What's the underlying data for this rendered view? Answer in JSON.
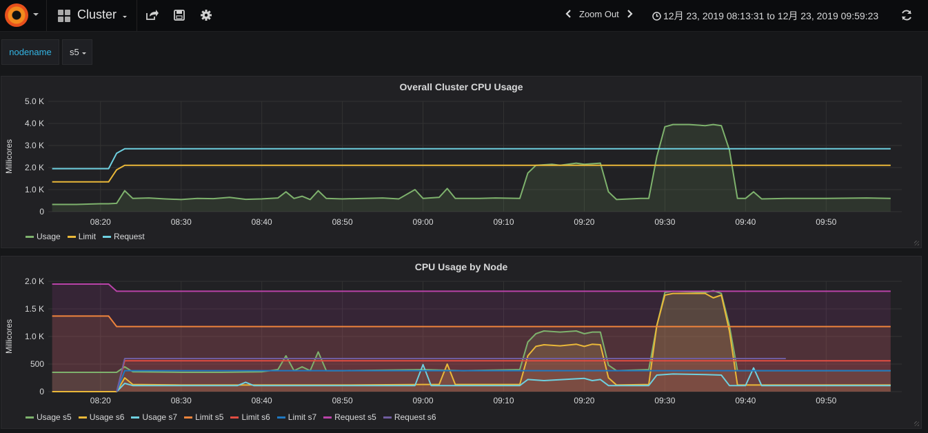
{
  "navbar": {
    "dashboard_title": "Cluster",
    "zoom_out_label": "Zoom Out",
    "time_range": "12月 23, 2019 08:13:31 to 12月 23, 2019 09:59:23",
    "icons": [
      "grafana-logo-icon",
      "dashboard-grid-icon",
      "share-icon",
      "save-icon",
      "settings-icon",
      "chevron-left-icon",
      "chevron-right-icon",
      "clock-icon",
      "refresh-icon"
    ]
  },
  "variables": {
    "label": "nodename",
    "value": "s5"
  },
  "colors": {
    "green": "#7eb26d",
    "yellow": "#eab839",
    "cyan": "#6ed0e0",
    "orange": "#ef843c",
    "red": "#e24d42",
    "blue": "#1f78c1",
    "magenta": "#ba43a9",
    "purple": "#705da0"
  },
  "chart_data": [
    {
      "type": "line",
      "title": "Overall Cluster CPU Usage",
      "ylabel": "Millicores",
      "xlabel": "",
      "ylim": [
        0,
        5000
      ],
      "yticks": [
        0,
        1000,
        2000,
        3000,
        4000,
        5000
      ],
      "ytick_labels": [
        "0",
        "1.0 K",
        "2.0 K",
        "3.0 K",
        "4.0 K",
        "5.0 K"
      ],
      "xlim": [
        "08:13:31",
        "09:59:23"
      ],
      "xticks": [
        "08:20",
        "08:30",
        "08:40",
        "08:50",
        "09:00",
        "09:10",
        "09:20",
        "09:30",
        "09:40",
        "09:50"
      ],
      "grid": true,
      "legend_position": "bottom-left",
      "series": [
        {
          "name": "Usage",
          "color": "#7eb26d",
          "fill": true,
          "points": [
            [
              "08:14",
              330
            ],
            [
              "08:17",
              330
            ],
            [
              "08:20",
              360
            ],
            [
              "08:21",
              360
            ],
            [
              "08:22",
              380
            ],
            [
              "08:23",
              950
            ],
            [
              "08:24",
              600
            ],
            [
              "08:26",
              620
            ],
            [
              "08:28",
              580
            ],
            [
              "08:30",
              550
            ],
            [
              "08:32",
              600
            ],
            [
              "08:34",
              590
            ],
            [
              "08:36",
              650
            ],
            [
              "08:38",
              560
            ],
            [
              "08:40",
              580
            ],
            [
              "08:42",
              620
            ],
            [
              "08:43",
              900
            ],
            [
              "08:44",
              600
            ],
            [
              "08:45",
              700
            ],
            [
              "08:46",
              550
            ],
            [
              "08:47",
              950
            ],
            [
              "08:48",
              600
            ],
            [
              "08:50",
              580
            ],
            [
              "08:55",
              620
            ],
            [
              "08:57",
              580
            ],
            [
              "08:59",
              1000
            ],
            [
              "09:00",
              600
            ],
            [
              "09:02",
              650
            ],
            [
              "09:03",
              1050
            ],
            [
              "09:04",
              600
            ],
            [
              "09:07",
              600
            ],
            [
              "09:09",
              620
            ],
            [
              "09:12",
              600
            ],
            [
              "09:13",
              1750
            ],
            [
              "09:14",
              2100
            ],
            [
              "09:16",
              2150
            ],
            [
              "09:17",
              2100
            ],
            [
              "09:19",
              2200
            ],
            [
              "09:20",
              2150
            ],
            [
              "09:22",
              2200
            ],
            [
              "09:23",
              900
            ],
            [
              "09:24",
              550
            ],
            [
              "09:27",
              600
            ],
            [
              "09:28",
              600
            ],
            [
              "09:29",
              2500
            ],
            [
              "09:30",
              3850
            ],
            [
              "09:31",
              3950
            ],
            [
              "09:33",
              3950
            ],
            [
              "09:35",
              3900
            ],
            [
              "09:36",
              3950
            ],
            [
              "09:37",
              3900
            ],
            [
              "09:38",
              2800
            ],
            [
              "09:39",
              600
            ],
            [
              "09:40",
              600
            ],
            [
              "09:41",
              900
            ],
            [
              "09:42",
              580
            ],
            [
              "09:45",
              600
            ],
            [
              "09:50",
              600
            ],
            [
              "09:55",
              620
            ],
            [
              "09:58",
              600
            ]
          ]
        },
        {
          "name": "Limit",
          "color": "#eab839",
          "fill": false,
          "points": [
            [
              "08:14",
              1350
            ],
            [
              "08:21",
              1350
            ],
            [
              "08:22",
              1900
            ],
            [
              "08:23",
              2100
            ],
            [
              "09:58",
              2100
            ]
          ]
        },
        {
          "name": "Request",
          "color": "#6ed0e0",
          "fill": false,
          "points": [
            [
              "08:14",
              1950
            ],
            [
              "08:21",
              1950
            ],
            [
              "08:22",
              2650
            ],
            [
              "08:23",
              2850
            ],
            [
              "09:58",
              2850
            ]
          ]
        }
      ]
    },
    {
      "type": "line",
      "title": "CPU Usage by Node",
      "ylabel": "Millicores",
      "xlabel": "",
      "ylim": [
        0,
        2000
      ],
      "yticks": [
        0,
        500,
        1000,
        1500,
        2000
      ],
      "ytick_labels": [
        "0",
        "500",
        "1.0 K",
        "1.5 K",
        "2.0 K"
      ],
      "xlim": [
        "08:13:31",
        "09:59:23"
      ],
      "xticks": [
        "08:20",
        "08:30",
        "08:40",
        "08:50",
        "09:00",
        "09:10",
        "09:20",
        "09:30",
        "09:40",
        "09:50"
      ],
      "grid": true,
      "legend_position": "bottom-left",
      "series": [
        {
          "name": "Usage s5",
          "color": "#7eb26d",
          "fill": true,
          "points": [
            [
              "08:14",
              350
            ],
            [
              "08:22",
              350
            ],
            [
              "08:23",
              450
            ],
            [
              "08:24",
              360
            ],
            [
              "08:30",
              350
            ],
            [
              "08:35",
              350
            ],
            [
              "08:40",
              360
            ],
            [
              "08:42",
              400
            ],
            [
              "08:43",
              650
            ],
            [
              "08:44",
              380
            ],
            [
              "08:45",
              450
            ],
            [
              "08:46",
              380
            ],
            [
              "08:47",
              720
            ],
            [
              "08:48",
              380
            ],
            [
              "08:50",
              380
            ],
            [
              "09:00",
              400
            ],
            [
              "09:05",
              380
            ],
            [
              "09:12",
              400
            ],
            [
              "09:13",
              900
            ],
            [
              "09:14",
              1050
            ],
            [
              "09:15",
              1100
            ],
            [
              "09:17",
              1080
            ],
            [
              "09:19",
              1100
            ],
            [
              "09:20",
              1050
            ],
            [
              "09:21",
              1080
            ],
            [
              "09:22",
              1080
            ],
            [
              "09:23",
              480
            ],
            [
              "09:24",
              380
            ],
            [
              "09:28",
              400
            ],
            [
              "09:29",
              1200
            ],
            [
              "09:30",
              1800
            ],
            [
              "09:31",
              1820
            ],
            [
              "09:35",
              1800
            ],
            [
              "09:36",
              1830
            ],
            [
              "09:37",
              1780
            ],
            [
              "09:38",
              1200
            ],
            [
              "09:39",
              380
            ],
            [
              "09:41",
              380
            ],
            [
              "09:45",
              380
            ],
            [
              "09:50",
              380
            ],
            [
              "09:58",
              380
            ]
          ]
        },
        {
          "name": "Usage s6",
          "color": "#eab839",
          "fill": true,
          "points": [
            [
              "08:14",
              0
            ],
            [
              "08:22",
              0
            ],
            [
              "08:23",
              250
            ],
            [
              "08:24",
              130
            ],
            [
              "08:30",
              120
            ],
            [
              "08:40",
              120
            ],
            [
              "08:50",
              120
            ],
            [
              "09:00",
              130
            ],
            [
              "09:02",
              130
            ],
            [
              "09:03",
              500
            ],
            [
              "09:04",
              130
            ],
            [
              "09:12",
              130
            ],
            [
              "09:13",
              650
            ],
            [
              "09:14",
              820
            ],
            [
              "09:15",
              850
            ],
            [
              "09:17",
              830
            ],
            [
              "09:19",
              860
            ],
            [
              "09:20",
              820
            ],
            [
              "09:21",
              860
            ],
            [
              "09:22",
              850
            ],
            [
              "09:23",
              250
            ],
            [
              "09:24",
              120
            ],
            [
              "09:28",
              130
            ],
            [
              "09:29",
              1200
            ],
            [
              "09:30",
              1750
            ],
            [
              "09:31",
              1780
            ],
            [
              "09:35",
              1780
            ],
            [
              "09:36",
              1700
            ],
            [
              "09:37",
              1750
            ],
            [
              "09:38",
              1100
            ],
            [
              "09:39",
              120
            ],
            [
              "09:41",
              120
            ],
            [
              "09:45",
              120
            ],
            [
              "09:50",
              120
            ],
            [
              "09:58",
              120
            ]
          ]
        },
        {
          "name": "Usage s7",
          "color": "#6ed0e0",
          "fill": false,
          "points": [
            [
              "08:22",
              0
            ],
            [
              "08:23",
              150
            ],
            [
              "08:24",
              110
            ],
            [
              "08:30",
              110
            ],
            [
              "08:37",
              110
            ],
            [
              "08:38",
              170
            ],
            [
              "08:39",
              110
            ],
            [
              "08:50",
              110
            ],
            [
              "08:59",
              110
            ],
            [
              "09:00",
              490
            ],
            [
              "09:01",
              110
            ],
            [
              "09:12",
              110
            ],
            [
              "09:13",
              220
            ],
            [
              "09:15",
              200
            ],
            [
              "09:20",
              240
            ],
            [
              "09:21",
              200
            ],
            [
              "09:22",
              220
            ],
            [
              "09:23",
              110
            ],
            [
              "09:28",
              110
            ],
            [
              "09:29",
              300
            ],
            [
              "09:31",
              320
            ],
            [
              "09:35",
              310
            ],
            [
              "09:37",
              300
            ],
            [
              "09:38",
              110
            ],
            [
              "09:40",
              110
            ],
            [
              "09:41",
              430
            ],
            [
              "09:42",
              110
            ],
            [
              "09:50",
              110
            ],
            [
              "09:58",
              110
            ]
          ]
        },
        {
          "name": "Limit s5",
          "color": "#ef843c",
          "fill": true,
          "points": [
            [
              "08:14",
              1370
            ],
            [
              "08:21",
              1370
            ],
            [
              "08:22",
              1180
            ],
            [
              "09:58",
              1180
            ]
          ]
        },
        {
          "name": "Limit s6",
          "color": "#e24d42",
          "fill": true,
          "points": [
            [
              "08:22",
              0
            ],
            [
              "08:23",
              560
            ],
            [
              "09:58",
              560
            ]
          ]
        },
        {
          "name": "Limit s7",
          "color": "#1f78c1",
          "fill": false,
          "points": [
            [
              "08:22",
              0
            ],
            [
              "08:23",
              380
            ],
            [
              "09:58",
              380
            ]
          ]
        },
        {
          "name": "Request s5",
          "color": "#ba43a9",
          "fill": true,
          "points": [
            [
              "08:14",
              1950
            ],
            [
              "08:21",
              1950
            ],
            [
              "08:22",
              1820
            ],
            [
              "09:58",
              1820
            ]
          ]
        },
        {
          "name": "Request s6",
          "color": "#705da0",
          "fill": false,
          "points": [
            [
              "08:22",
              0
            ],
            [
              "08:23",
              600
            ],
            [
              "09:45",
              600
            ]
          ]
        }
      ]
    }
  ]
}
